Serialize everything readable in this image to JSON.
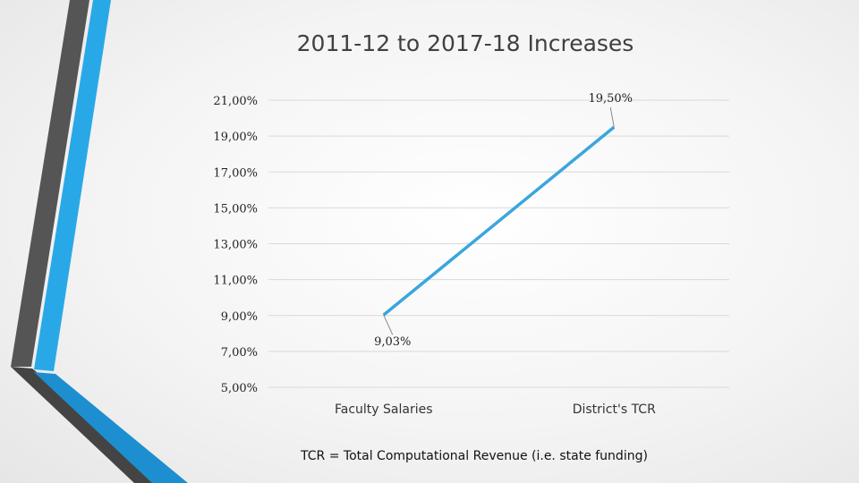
{
  "footnote": "TCR = Total Computational Revenue (i.e. state funding)",
  "colors": {
    "line": "#3aa6dd",
    "grid": "#d9d9d9",
    "decor_dark": "#555555",
    "decor_blue": "#29a8e8"
  },
  "chart_data": {
    "type": "line",
    "title": "2011-12 to 2017-18 Increases",
    "categories": [
      "Faculty Salaries",
      "District's TCR"
    ],
    "series": [
      {
        "values": [
          9.03,
          19.5
        ]
      }
    ],
    "data_labels": [
      "9,03%",
      "19,50%"
    ],
    "yticks": [
      "5,00%",
      "7,00%",
      "9,00%",
      "11,00%",
      "13,00%",
      "15,00%",
      "17,00%",
      "19,00%",
      "21,00%"
    ],
    "ylim": [
      5,
      21
    ],
    "grid": true,
    "legend": "none"
  }
}
